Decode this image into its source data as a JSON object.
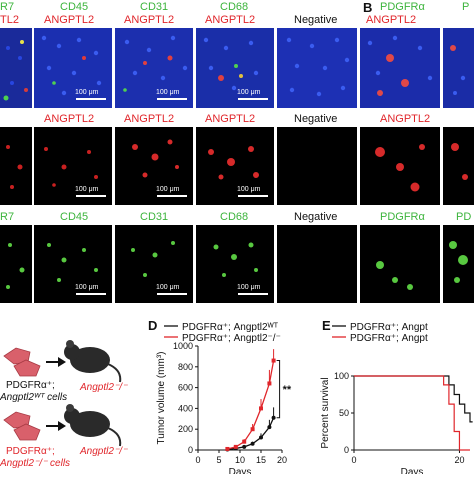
{
  "figure": {
    "panel_letters": {
      "b": "B",
      "d": "D",
      "e": "E"
    },
    "row1": {
      "col0_top": "R7",
      "col0_bottom": "TL2",
      "col1_top": "CD45",
      "col1_bottom": "ANGPTL2",
      "col2_top": "CD31",
      "col2_bottom": "ANGPTL2",
      "col3_top": "CD68",
      "col3_bottom": "ANGPTL2",
      "col4": "Negative",
      "col5_top": "PDGFRα",
      "col5_bottom": "ANGPTL2",
      "col6_top": "P"
    },
    "row2": {
      "col1": "ANGPTL2",
      "col2": "ANGPTL2",
      "col3": "ANGPTL2",
      "col4": "Negative",
      "col5": "ANGPTL2"
    },
    "row3": {
      "col0": "R7",
      "col1": "CD45",
      "col2": "CD31",
      "col3": "CD68",
      "col4": "Negative",
      "col5": "PDGFRα",
      "col6": "PD"
    },
    "scale_bar": "100 μm",
    "schematic": {
      "cell1_line1": "PDGFRα⁺;",
      "cell1_line2": "Angptl2ᵂᵀ cells",
      "mouse1": "Angptl2⁻/⁻",
      "cell2_line1": "PDGFRα⁺;",
      "cell2_line2": "Angptl2⁻/⁻ cells",
      "mouse2": "Angptl2⁻/⁻"
    },
    "colors": {
      "green_label": "#3cb43c",
      "red_label": "#e0262b",
      "nuclei_blue": "#1f35c8",
      "cell_pink": "#d9606b",
      "mouse_dark": "#2a2a2a"
    }
  },
  "chart_data": [
    {
      "type": "line",
      "panel": "D",
      "xlabel": "Days",
      "ylabel": "Tumor volume (mm³)",
      "xlim": [
        0,
        20
      ],
      "ylim": [
        0,
        1000
      ],
      "xticks": [
        0,
        5,
        10,
        15,
        20
      ],
      "yticks": [
        0,
        200,
        400,
        600,
        800,
        1000
      ],
      "legend_position": "top",
      "annotation": "**",
      "series": [
        {
          "name": "PDGFRα⁺; Angptl2ᵂᵀ",
          "color": "#111111",
          "x": [
            7,
            9,
            11,
            13,
            15,
            17,
            18
          ],
          "y": [
            5,
            15,
            30,
            60,
            120,
            220,
            310
          ],
          "err": [
            5,
            8,
            12,
            20,
            40,
            70,
            100
          ]
        },
        {
          "name": "PDGFRα⁺; Angptl2⁻/⁻",
          "color": "#e0262b",
          "x": [
            7,
            9,
            11,
            13,
            15,
            17,
            18
          ],
          "y": [
            10,
            30,
            80,
            200,
            400,
            640,
            860
          ],
          "err": [
            5,
            12,
            25,
            50,
            90,
            130,
            110
          ]
        }
      ]
    },
    {
      "type": "line",
      "panel": "E",
      "xlabel": "Days",
      "ylabel": "Percent survival",
      "xlim": [
        0,
        22
      ],
      "ylim": [
        0,
        100
      ],
      "xticks": [
        0,
        20
      ],
      "yticks": [
        0,
        50,
        100
      ],
      "legend_position": "top",
      "series": [
        {
          "name": "PDGFRα⁺; Angpt",
          "color": "#111111",
          "x": [
            0,
            18,
            18,
            19,
            19,
            20,
            20,
            21,
            21,
            22,
            22,
            22.5
          ],
          "y": [
            100,
            100,
            88,
            88,
            75,
            75,
            62,
            62,
            50,
            50,
            38,
            38
          ]
        },
        {
          "name": "PDGFRα⁺; Angpt",
          "color": "#e0262b",
          "x": [
            0,
            17,
            17,
            18,
            18,
            19,
            19,
            20,
            20,
            22
          ],
          "y": [
            100,
            100,
            88,
            88,
            62,
            62,
            25,
            25,
            0,
            0
          ]
        }
      ]
    }
  ]
}
